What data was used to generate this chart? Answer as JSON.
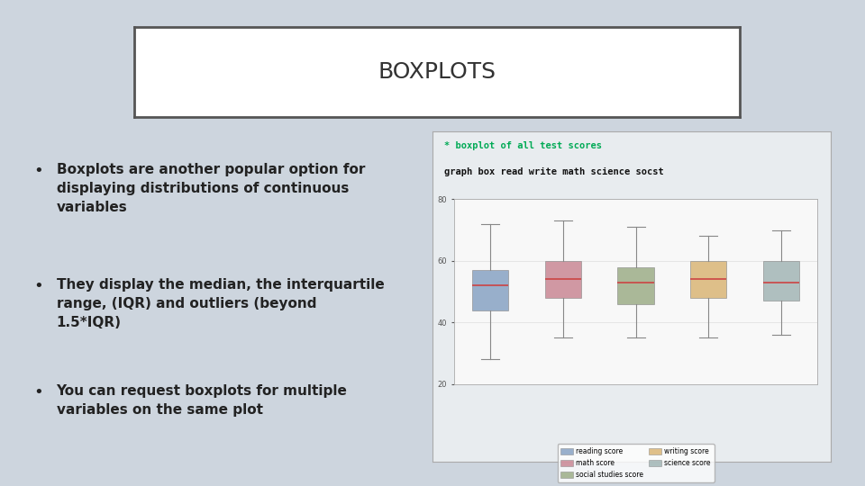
{
  "title": "BOXPLOTS",
  "background_color": "#cdd5de",
  "title_box_color": "#ffffff",
  "title_box_edge": "#555555",
  "bullet_points": [
    "Boxplots are another popular option for\ndisplaying distributions of continuous\nvariables",
    "They display the median, the interquartile\nrange, (IQR) and outliers (beyond\n1.5*IQR)",
    "You can request boxplots for multiple\nvariables on the same plot"
  ],
  "code_line1": "* boxplot of all test scores",
  "code_line2": "graph box read write math science socst",
  "code_color": "#00aa55",
  "code_color2": "#111111",
  "box_colors": [
    "#7090b8",
    "#c07080",
    "#8a9e70",
    "#d4a85a",
    "#90a8a8"
  ],
  "box_labels": [
    "reading score",
    "math score",
    "social studies score",
    "writing score",
    "science score"
  ],
  "ylim": [
    20,
    80
  ],
  "yticks": [
    20,
    40,
    60,
    80
  ],
  "box_stats": [
    {
      "med": 52,
      "q1": 44,
      "q3": 57,
      "whislo": 28,
      "whishi": 72
    },
    {
      "med": 54,
      "q1": 48,
      "q3": 60,
      "whislo": 35,
      "whishi": 73
    },
    {
      "med": 53,
      "q1": 46,
      "q3": 58,
      "whislo": 35,
      "whishi": 71
    },
    {
      "med": 54,
      "q1": 48,
      "q3": 60,
      "whislo": 35,
      "whishi": 68
    },
    {
      "med": 53,
      "q1": 47,
      "q3": 60,
      "whislo": 36,
      "whishi": 70
    }
  ]
}
